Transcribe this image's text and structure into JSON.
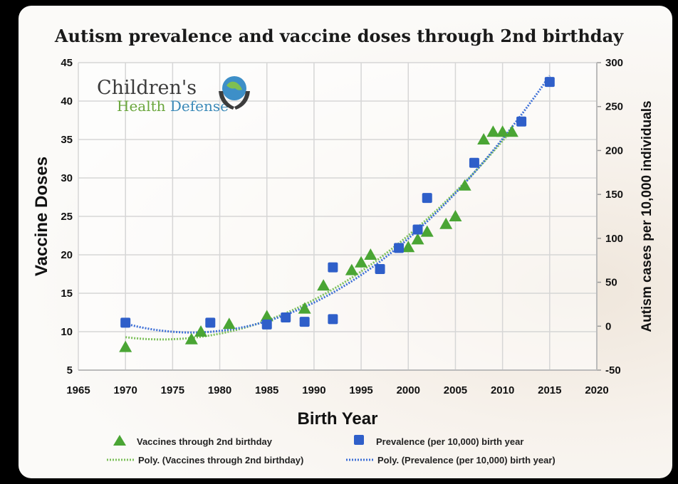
{
  "chart_data": {
    "type": "scatter",
    "title": "Autism prevalence and vaccine doses through 2nd birthday",
    "xlabel": "Birth Year",
    "ylabel": "Vaccine Doses",
    "y2label": "Autism cases per 10,000 individuals",
    "xlim": [
      1965,
      2020
    ],
    "ylim": [
      5,
      45
    ],
    "y2lim": [
      -50,
      300
    ],
    "xticks": [
      1965,
      1970,
      1975,
      1980,
      1985,
      1990,
      1995,
      2000,
      2005,
      2010,
      2015,
      2020
    ],
    "yticks": [
      5,
      10,
      15,
      20,
      25,
      30,
      35,
      40,
      45
    ],
    "y2ticks": [
      -50,
      0,
      50,
      100,
      150,
      200,
      250,
      300
    ],
    "grid": true,
    "legend_position": "bottom",
    "series": [
      {
        "name": "Vaccines through 2nd birthday",
        "axis": "left",
        "marker": "triangle",
        "color": "#4aa534",
        "x": [
          1970,
          1977,
          1978,
          1981,
          1985,
          1989,
          1991,
          1994,
          1995,
          1996,
          2000,
          2001,
          2002,
          2004,
          2005,
          2006,
          2008,
          2009,
          2010,
          2011
        ],
        "y": [
          8,
          9,
          10,
          11,
          12,
          13,
          16,
          18,
          19,
          20,
          21,
          22,
          23,
          24,
          25,
          29,
          35,
          36,
          36,
          36
        ]
      },
      {
        "name": "Prevalence (per 10,000) birth year",
        "axis": "right",
        "marker": "square",
        "color": "#2f5fc9",
        "x": [
          1970,
          1979,
          1985,
          1987,
          1989,
          1992,
          1992,
          1997,
          1999,
          2001,
          2002,
          2007,
          2012,
          2015
        ],
        "y": [
          4,
          4,
          2,
          10,
          5,
          8,
          67,
          65,
          89,
          110,
          146,
          186,
          233,
          278
        ]
      }
    ],
    "trendlines": [
      {
        "name": "Poly. (Vaccines through 2nd birthday)",
        "of": 0,
        "order": 2,
        "color": "#7cc05a",
        "style": "dotted"
      },
      {
        "name": "Poly. (Prevalence (per 10,000) birth year)",
        "of": 1,
        "order": 2,
        "color": "#3d6fd6",
        "style": "dotted"
      }
    ]
  },
  "logo": {
    "line1": "Children's",
    "line2a": "Health",
    "line2b": "Defense"
  }
}
